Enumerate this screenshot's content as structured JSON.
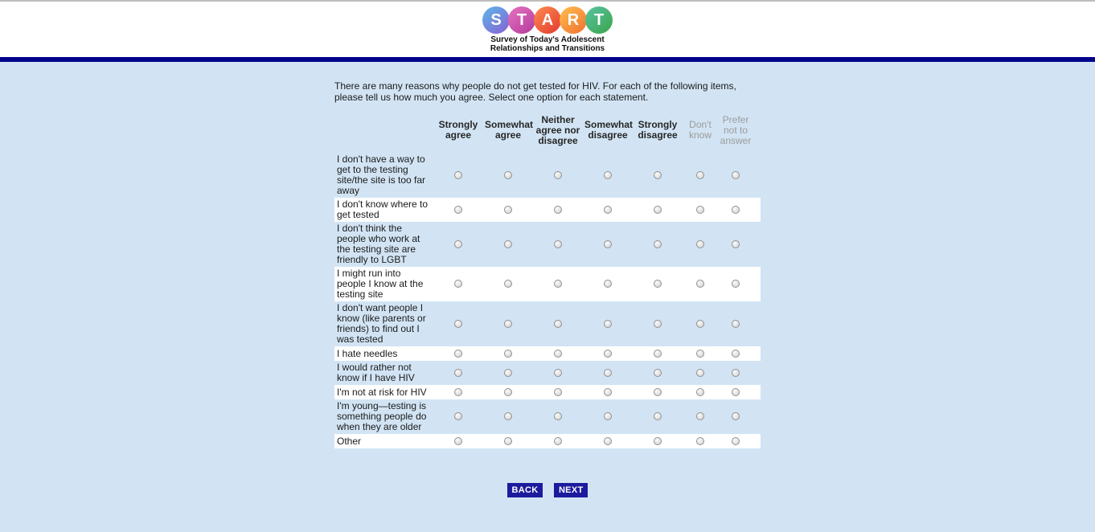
{
  "page": {
    "background_color": "#d2e4f4",
    "accent_navy": "#00028a",
    "button_navy": "#1d1b9d"
  },
  "header": {
    "logo_letters": [
      {
        "letter": "S",
        "name": "s",
        "color_from": "#5ab8e8",
        "color_to": "#8a5fd3"
      },
      {
        "letter": "T",
        "name": "t1",
        "color_from": "#e873bd",
        "color_to": "#b13a9e"
      },
      {
        "letter": "A",
        "name": "a",
        "color_from": "#ff8a50",
        "color_to": "#e23b2e"
      },
      {
        "letter": "R",
        "name": "r",
        "color_from": "#ffc04d",
        "color_to": "#f07030"
      },
      {
        "letter": "T",
        "name": "t2",
        "color_from": "#59c3a2",
        "color_to": "#3aa54a"
      }
    ],
    "tagline_line1": "Survey of Today's Adolescent",
    "tagline_line2": "Relationships and Transitions"
  },
  "question": {
    "text": "There are many reasons why people do not get tested for HIV. For each of the following items, please tell us how much you agree. Select one option for each statement."
  },
  "matrix": {
    "columns": [
      {
        "label": "Strongly agree",
        "slug": "strongly-agree",
        "muted": false
      },
      {
        "label": "Somewhat agree",
        "slug": "somewhat-agree",
        "muted": false
      },
      {
        "label": "Neither agree nor disagree",
        "slug": "neither-agree-nor-disagree",
        "muted": false
      },
      {
        "label": "Somewhat disagree",
        "slug": "somewhat-disagree",
        "muted": false
      },
      {
        "label": "Strongly disagree",
        "slug": "strongly-disagree",
        "muted": false
      },
      {
        "label": "Don't know",
        "slug": "dont-know",
        "muted": true
      },
      {
        "label": "Prefer not to answer",
        "slug": "prefer-not-to-answer",
        "muted": true
      }
    ],
    "rows": [
      "I don't have a way to get to the testing site/the site is too far away",
      "I don't know where to get tested",
      "I don't think the people who work at the testing site are friendly to LGBT",
      "I might run into people I know at the testing site",
      "I don't want people I know (like parents or friends) to find out I was tested",
      "I hate needles",
      "I would rather not know if I have HIV",
      "I'm not at risk for HIV",
      "I'm young—testing is something people do when they are older",
      "Other"
    ]
  },
  "buttons": {
    "back": "BACK",
    "next": "NEXT"
  }
}
